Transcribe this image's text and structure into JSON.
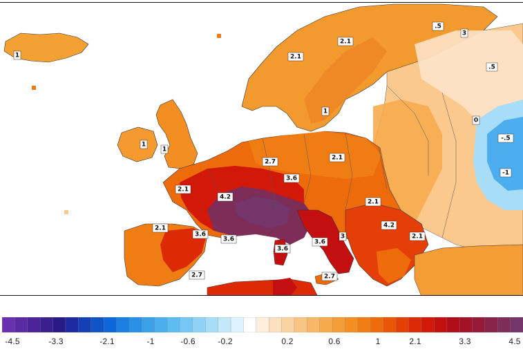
{
  "legend": {
    "colors": [
      "#6a2fb0",
      "#5a2aa5",
      "#4a2498",
      "#3a1f8e",
      "#2a1a88",
      "#1e2aa0",
      "#1540b5",
      "#1054c8",
      "#0c68d8",
      "#1a7ee2",
      "#2a90e6",
      "#3ba0ea",
      "#4caeee",
      "#5dbcf1",
      "#75c8f3",
      "#8ed3f5",
      "#a8ddf7",
      "#c2e8fa",
      "#dcf2fc",
      "#ffffff",
      "#fdeede",
      "#fce0c0",
      "#fbd3a3",
      "#f9c584",
      "#f8b767",
      "#f6aa4c",
      "#f49c35",
      "#f28e22",
      "#f07d14",
      "#ee6b0c",
      "#ea5508",
      "#e43f06",
      "#dd2a06",
      "#d21808",
      "#c30f0f",
      "#b20e1a",
      "#a31226",
      "#941a35",
      "#872346",
      "#7d2d58",
      "#73356a"
    ],
    "tick_labels": [
      "-4.5",
      "-3.3",
      "-2.1",
      "-1",
      "-0.6",
      "-0.2",
      "0.2",
      "0.6",
      "1",
      "2.1",
      "3.3",
      "4.5"
    ]
  },
  "map": {
    "contour_labels": [
      {
        "text": "2.1"
      },
      {
        "text": "2.1"
      },
      {
        "text": "1"
      },
      {
        "text": "1"
      },
      {
        "text": "1"
      },
      {
        "text": "1"
      },
      {
        "text": "2.7"
      },
      {
        "text": "3.6"
      },
      {
        "text": "2.1"
      },
      {
        "text": "4.2"
      },
      {
        "text": "2.1"
      },
      {
        "text": "3.6"
      },
      {
        "text": "3.6"
      },
      {
        "text": "3.6"
      },
      {
        "text": "3.6"
      },
      {
        "text": "4.2"
      },
      {
        "text": "2.1"
      },
      {
        "text": "2.1"
      },
      {
        "text": "0"
      },
      {
        "text": "-.5"
      },
      {
        "text": "-1"
      },
      {
        "text": ".5"
      },
      {
        "text": ".5"
      },
      {
        "text": "2.7"
      },
      {
        "text": "2.7"
      },
      {
        "text": "3"
      },
      {
        "text": "2.1"
      },
      {
        "text": "3"
      }
    ]
  }
}
